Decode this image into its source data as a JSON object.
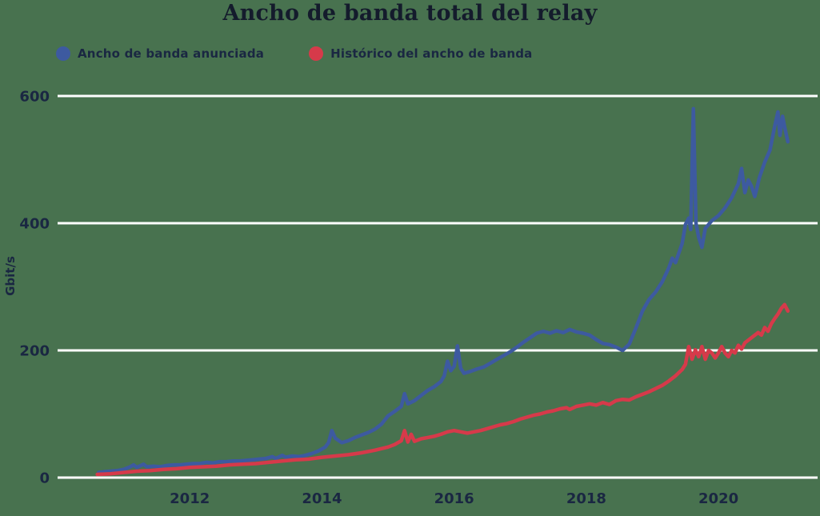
{
  "title": "Ancho de banda total del relay",
  "colors": {
    "background": "#48724F",
    "gridline": "#FFFFFF",
    "advertised": "#3D5AA0",
    "history": "#D63A4A",
    "text": "#1A2742",
    "title_text": "#141B2C"
  },
  "legend": {
    "items": [
      {
        "label": "Ancho de banda anunciada",
        "color": "#3D5AA0"
      },
      {
        "label": "Histórico del ancho de banda",
        "color": "#D63A4A"
      }
    ]
  },
  "chart_data": {
    "type": "line",
    "title": "Ancho de banda total del relay",
    "xlabel": "",
    "ylabel": "Gbit/s",
    "x_ticks": [
      2012,
      2014,
      2016,
      2018,
      2020
    ],
    "y_ticks": [
      0,
      200,
      400,
      600
    ],
    "xlim": [
      2010,
      2021.5
    ],
    "ylim": [
      0,
      600
    ],
    "grid": "horizontal white lines",
    "legend_position": "top-left",
    "series": [
      {
        "name": "Ancho de banda anunciada",
        "color": "#3D5AA0",
        "points": [
          [
            2010.62,
            8
          ],
          [
            2010.7,
            9
          ],
          [
            2010.8,
            10
          ],
          [
            2010.9,
            11
          ],
          [
            2011.0,
            13
          ],
          [
            2011.1,
            17
          ],
          [
            2011.15,
            20
          ],
          [
            2011.2,
            16
          ],
          [
            2011.3,
            21
          ],
          [
            2011.35,
            17
          ],
          [
            2011.45,
            18
          ],
          [
            2011.55,
            17
          ],
          [
            2011.65,
            19
          ],
          [
            2011.75,
            20
          ],
          [
            2011.85,
            20
          ],
          [
            2011.95,
            21
          ],
          [
            2012.05,
            22
          ],
          [
            2012.15,
            22
          ],
          [
            2012.25,
            24
          ],
          [
            2012.35,
            23
          ],
          [
            2012.45,
            25
          ],
          [
            2012.55,
            25
          ],
          [
            2012.65,
            26
          ],
          [
            2012.75,
            26
          ],
          [
            2012.85,
            27
          ],
          [
            2012.95,
            28
          ],
          [
            2013.05,
            29
          ],
          [
            2013.15,
            30
          ],
          [
            2013.25,
            33
          ],
          [
            2013.3,
            30
          ],
          [
            2013.4,
            35
          ],
          [
            2013.45,
            32
          ],
          [
            2013.55,
            34
          ],
          [
            2013.65,
            33
          ],
          [
            2013.75,
            35
          ],
          [
            2013.85,
            38
          ],
          [
            2013.95,
            42
          ],
          [
            2014.05,
            48
          ],
          [
            2014.1,
            55
          ],
          [
            2014.15,
            74
          ],
          [
            2014.2,
            62
          ],
          [
            2014.3,
            55
          ],
          [
            2014.4,
            58
          ],
          [
            2014.5,
            63
          ],
          [
            2014.6,
            67
          ],
          [
            2014.7,
            71
          ],
          [
            2014.8,
            76
          ],
          [
            2014.9,
            84
          ],
          [
            2015.0,
            97
          ],
          [
            2015.1,
            104
          ],
          [
            2015.2,
            112
          ],
          [
            2015.25,
            132
          ],
          [
            2015.3,
            116
          ],
          [
            2015.4,
            121
          ],
          [
            2015.5,
            129
          ],
          [
            2015.6,
            137
          ],
          [
            2015.7,
            143
          ],
          [
            2015.8,
            151
          ],
          [
            2015.85,
            160
          ],
          [
            2015.9,
            183
          ],
          [
            2015.95,
            168
          ],
          [
            2016.0,
            175
          ],
          [
            2016.05,
            207
          ],
          [
            2016.1,
            172
          ],
          [
            2016.15,
            164
          ],
          [
            2016.25,
            167
          ],
          [
            2016.35,
            171
          ],
          [
            2016.45,
            174
          ],
          [
            2016.55,
            180
          ],
          [
            2016.65,
            186
          ],
          [
            2016.75,
            192
          ],
          [
            2016.85,
            198
          ],
          [
            2016.95,
            205
          ],
          [
            2017.05,
            213
          ],
          [
            2017.15,
            220
          ],
          [
            2017.25,
            227
          ],
          [
            2017.35,
            230
          ],
          [
            2017.45,
            227
          ],
          [
            2017.55,
            231
          ],
          [
            2017.65,
            228
          ],
          [
            2017.75,
            233
          ],
          [
            2017.85,
            229
          ],
          [
            2017.95,
            227
          ],
          [
            2018.05,
            224
          ],
          [
            2018.15,
            217
          ],
          [
            2018.25,
            211
          ],
          [
            2018.35,
            209
          ],
          [
            2018.45,
            205
          ],
          [
            2018.55,
            200
          ],
          [
            2018.65,
            210
          ],
          [
            2018.75,
            235
          ],
          [
            2018.85,
            262
          ],
          [
            2018.95,
            280
          ],
          [
            2019.05,
            292
          ],
          [
            2019.15,
            308
          ],
          [
            2019.25,
            330
          ],
          [
            2019.3,
            345
          ],
          [
            2019.35,
            338
          ],
          [
            2019.45,
            368
          ],
          [
            2019.5,
            398
          ],
          [
            2019.55,
            408
          ],
          [
            2019.58,
            390
          ],
          [
            2019.62,
            580
          ],
          [
            2019.66,
            400
          ],
          [
            2019.7,
            378
          ],
          [
            2019.75,
            362
          ],
          [
            2019.8,
            392
          ],
          [
            2019.9,
            404
          ],
          [
            2020.0,
            412
          ],
          [
            2020.1,
            424
          ],
          [
            2020.2,
            440
          ],
          [
            2020.3,
            462
          ],
          [
            2020.35,
            486
          ],
          [
            2020.4,
            448
          ],
          [
            2020.45,
            468
          ],
          [
            2020.5,
            458
          ],
          [
            2020.55,
            442
          ],
          [
            2020.62,
            472
          ],
          [
            2020.7,
            496
          ],
          [
            2020.78,
            515
          ],
          [
            2020.85,
            552
          ],
          [
            2020.9,
            575
          ],
          [
            2020.93,
            538
          ],
          [
            2020.97,
            568
          ],
          [
            2021.0,
            552
          ],
          [
            2021.05,
            528
          ]
        ]
      },
      {
        "name": "Histórico del ancho de banda",
        "color": "#D63A4A",
        "points": [
          [
            2010.6,
            5
          ],
          [
            2010.8,
            6
          ],
          [
            2011.0,
            8
          ],
          [
            2011.2,
            10
          ],
          [
            2011.4,
            11
          ],
          [
            2011.6,
            13
          ],
          [
            2011.8,
            14
          ],
          [
            2012.0,
            16
          ],
          [
            2012.2,
            17
          ],
          [
            2012.4,
            18
          ],
          [
            2012.6,
            20
          ],
          [
            2012.8,
            21
          ],
          [
            2013.0,
            22
          ],
          [
            2013.2,
            24
          ],
          [
            2013.4,
            26
          ],
          [
            2013.6,
            28
          ],
          [
            2013.8,
            29
          ],
          [
            2014.0,
            32
          ],
          [
            2014.2,
            34
          ],
          [
            2014.4,
            36
          ],
          [
            2014.6,
            39
          ],
          [
            2014.8,
            43
          ],
          [
            2015.0,
            48
          ],
          [
            2015.1,
            52
          ],
          [
            2015.2,
            58
          ],
          [
            2015.25,
            74
          ],
          [
            2015.3,
            56
          ],
          [
            2015.35,
            68
          ],
          [
            2015.4,
            57
          ],
          [
            2015.5,
            61
          ],
          [
            2015.6,
            63
          ],
          [
            2015.7,
            65
          ],
          [
            2015.8,
            68
          ],
          [
            2015.9,
            72
          ],
          [
            2016.0,
            74
          ],
          [
            2016.1,
            72
          ],
          [
            2016.2,
            70
          ],
          [
            2016.3,
            72
          ],
          [
            2016.4,
            74
          ],
          [
            2016.5,
            77
          ],
          [
            2016.6,
            80
          ],
          [
            2016.7,
            83
          ],
          [
            2016.8,
            85
          ],
          [
            2016.9,
            88
          ],
          [
            2017.0,
            92
          ],
          [
            2017.1,
            95
          ],
          [
            2017.2,
            98
          ],
          [
            2017.3,
            100
          ],
          [
            2017.4,
            103
          ],
          [
            2017.5,
            105
          ],
          [
            2017.6,
            108
          ],
          [
            2017.7,
            110
          ],
          [
            2017.75,
            107
          ],
          [
            2017.85,
            112
          ],
          [
            2017.95,
            114
          ],
          [
            2018.05,
            116
          ],
          [
            2018.15,
            114
          ],
          [
            2018.25,
            118
          ],
          [
            2018.35,
            115
          ],
          [
            2018.45,
            121
          ],
          [
            2018.55,
            123
          ],
          [
            2018.65,
            122
          ],
          [
            2018.75,
            127
          ],
          [
            2018.85,
            131
          ],
          [
            2018.95,
            135
          ],
          [
            2019.05,
            140
          ],
          [
            2019.15,
            145
          ],
          [
            2019.25,
            152
          ],
          [
            2019.35,
            160
          ],
          [
            2019.45,
            170
          ],
          [
            2019.5,
            178
          ],
          [
            2019.55,
            206
          ],
          [
            2019.6,
            186
          ],
          [
            2019.65,
            201
          ],
          [
            2019.7,
            190
          ],
          [
            2019.75,
            206
          ],
          [
            2019.8,
            186
          ],
          [
            2019.85,
            200
          ],
          [
            2019.9,
            196
          ],
          [
            2019.95,
            188
          ],
          [
            2020.0,
            196
          ],
          [
            2020.05,
            206
          ],
          [
            2020.1,
            196
          ],
          [
            2020.15,
            190
          ],
          [
            2020.2,
            200
          ],
          [
            2020.25,
            196
          ],
          [
            2020.3,
            208
          ],
          [
            2020.35,
            202
          ],
          [
            2020.4,
            212
          ],
          [
            2020.5,
            220
          ],
          [
            2020.6,
            228
          ],
          [
            2020.65,
            224
          ],
          [
            2020.7,
            236
          ],
          [
            2020.75,
            230
          ],
          [
            2020.8,
            242
          ],
          [
            2020.85,
            250
          ],
          [
            2020.9,
            257
          ],
          [
            2020.95,
            266
          ],
          [
            2021.0,
            272
          ],
          [
            2021.05,
            262
          ]
        ]
      }
    ]
  }
}
